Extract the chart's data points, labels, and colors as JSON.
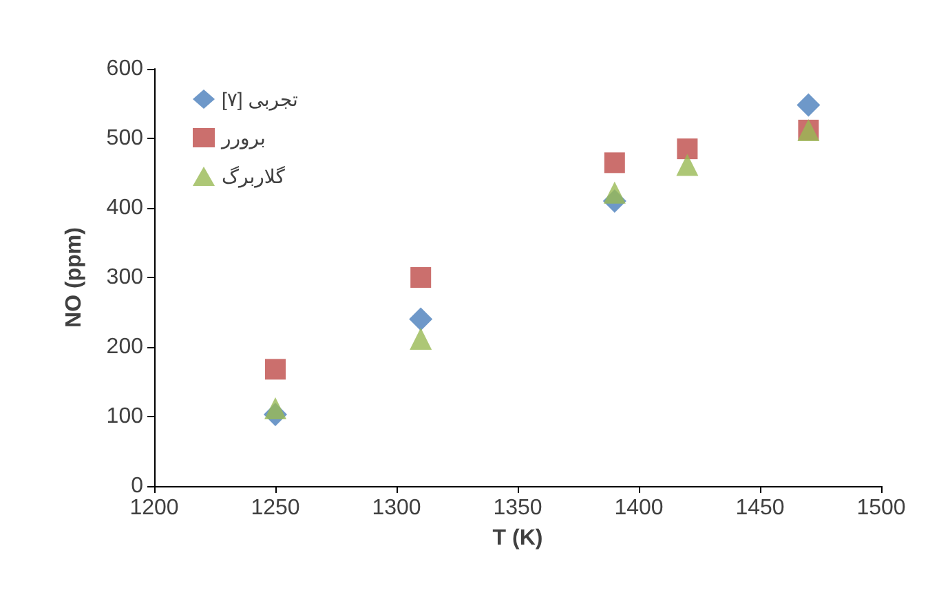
{
  "chart_data": {
    "type": "scatter",
    "xlabel": "T (K)",
    "ylabel": "NO (ppm)",
    "x": [
      1250,
      1310,
      1390,
      1420,
      1470
    ],
    "xlim": [
      1200,
      1500
    ],
    "xticks": [
      1200,
      1250,
      1300,
      1350,
      1400,
      1450,
      1500
    ],
    "ylim": [
      0,
      600
    ],
    "yticks": [
      0,
      100,
      200,
      300,
      400,
      500,
      600
    ],
    "grid": false,
    "legend": "top left",
    "series": [
      {
        "name": "تجربی [۷]",
        "color": "#4a7ebb",
        "marker": "diamond",
        "values": [
          103,
          240,
          410,
          null,
          548
        ]
      },
      {
        "name": "برورر",
        "color": "#be4b48",
        "marker": "square",
        "values": [
          168,
          300,
          465,
          485,
          512
        ]
      },
      {
        "name": "گلاربرگ",
        "color": "#98b954",
        "marker": "triangle",
        "values": [
          112,
          212,
          422,
          462,
          512
        ]
      }
    ]
  }
}
